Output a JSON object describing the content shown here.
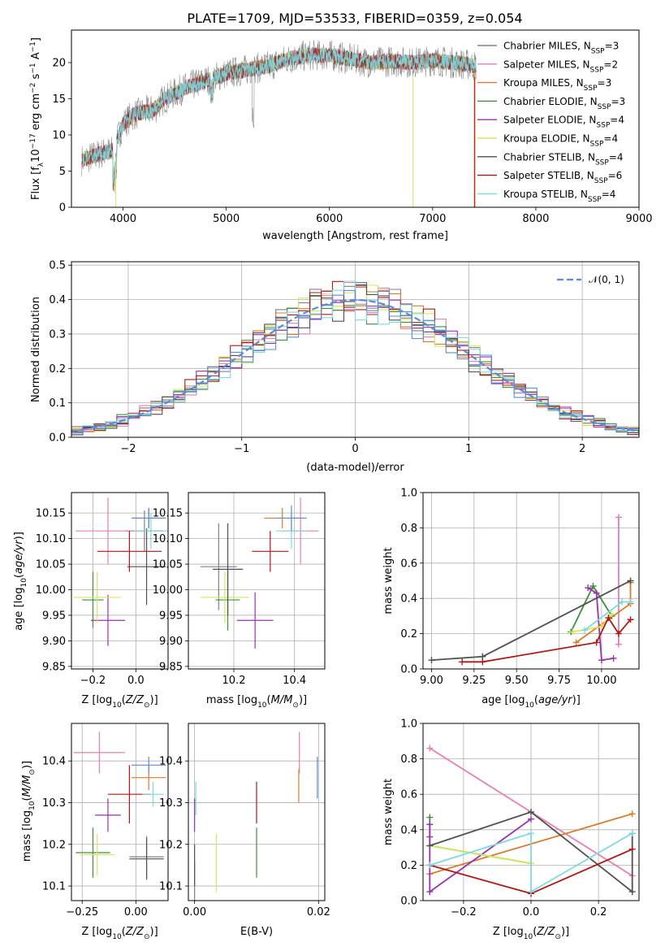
{
  "colors": {
    "Chabrier MILES": "#808080",
    "Salpeter MILES": "#e57fb2",
    "Kroupa MILES": "#d97c2b",
    "Chabrier ELODIE": "#3f8f3f",
    "Salpeter ELODIE": "#9b30b0",
    "Kroupa ELODIE": "#d6e85a",
    "Chabrier STELIB": "#505050",
    "Salpeter STELIB": "#b01818",
    "Kroupa STELIB": "#7fd8df",
    "normal": "#5b8bd9"
  },
  "chart_data": [
    {
      "type": "line",
      "title": "PLATE=1709, MJD=53533, FIBERID=0359, z=0.054",
      "xlabel": "wavelength [Angstrom, rest frame]",
      "ylabel": "Flux [fλ10⁻¹⁷ erg cm⁻² s⁻¹ A⁻¹]",
      "xlim": [
        3500,
        9000
      ],
      "ylim": [
        0,
        24.5
      ],
      "xticks": [
        4000,
        5000,
        6000,
        7000,
        8000,
        9000
      ],
      "yticks": [
        0,
        5,
        10,
        15,
        20
      ],
      "legend_position": "upper right",
      "legend": [
        "Chabrier MILES, NSSP=3",
        "Salpeter MILES, NSSP=2",
        "Kroupa MILES, NSSP=3",
        "Chabrier ELODIE, NSSP=3",
        "Salpeter ELODIE, NSSP=4",
        "Kroupa ELODIE, NSSP=4",
        "Chabrier STELIB, NSSP=4",
        "Salpeter STELIB, NSSP=6",
        "Kroupa STELIB, NSSP=4"
      ],
      "continuum": {
        "wavelength": [
          3600,
          3700,
          3800,
          3900,
          4000,
          4100,
          4200,
          4300,
          4400,
          4600,
          4800,
          5000,
          5200,
          5400,
          5600,
          5800,
          6000,
          6200,
          6400,
          6600,
          6800,
          7000,
          7200,
          7400
        ],
        "flux": [
          6.5,
          7.0,
          7.5,
          7.8,
          11.5,
          12.8,
          13.2,
          13.5,
          15.0,
          16.5,
          17.5,
          18.5,
          19.0,
          19.5,
          20.5,
          21.0,
          21.0,
          20.5,
          20.0,
          20.2,
          20.0,
          20.3,
          20.0,
          19.6
        ]
      }
    },
    {
      "type": "step",
      "xlabel": "(data-model)/error",
      "ylabel": "Normed distribution",
      "xlim": [
        -2.5,
        2.5
      ],
      "ylim": [
        0,
        0.51
      ],
      "xticks": [
        -2,
        -1,
        0,
        1,
        2
      ],
      "yticks": [
        0.0,
        0.1,
        0.2,
        0.3,
        0.4,
        0.5
      ],
      "grid": true,
      "bin_width": 0.1,
      "legend": [
        "𝒩(0, 1)"
      ],
      "legend_position": "upper right",
      "normal_curve": {
        "mean": 0,
        "sigma": 1
      }
    },
    {
      "type": "errorbar",
      "xlabel": "Z [log10(Z/Z⊙)]",
      "ylabel": "age [log10(age/yr)]",
      "xlim": [
        -0.3,
        0.15
      ],
      "ylim": [
        9.845,
        10.19
      ],
      "xticks": [
        -0.2,
        0.0
      ],
      "xticklabels": [
        "−0.2",
        "0.0"
      ],
      "yticks": [
        9.85,
        9.9,
        9.95,
        10.0,
        10.05,
        10.1,
        10.15
      ],
      "points": [
        {
          "name": "Chabrier MILES",
          "x": 0.04,
          "y": 10.115,
          "xerr": 0.09,
          "yerr": 0.04
        },
        {
          "name": "Salpeter MILES",
          "x": -0.13,
          "y": 10.115,
          "xerr": 0.15,
          "yerr": 0.065
        },
        {
          "name": "Kroupa MILES",
          "x": 0.06,
          "y": 10.14,
          "xerr": 0.08,
          "yerr": 0.02
        },
        {
          "name": "Chabrier ELODIE",
          "x": -0.2,
          "y": 9.98,
          "xerr": 0.05,
          "yerr": 0.055
        },
        {
          "name": "Salpeter ELODIE",
          "x": -0.13,
          "y": 9.94,
          "xerr": 0.08,
          "yerr": 0.05
        },
        {
          "name": "Kroupa ELODIE",
          "x": -0.18,
          "y": 9.985,
          "xerr": 0.11,
          "yerr": 0.05
        },
        {
          "name": "Chabrier STELIB",
          "x": 0.05,
          "y": 10.045,
          "xerr": 0.09,
          "yerr": 0.075
        },
        {
          "name": "Salpeter STELIB",
          "x": -0.03,
          "y": 10.075,
          "xerr": 0.15,
          "yerr": 0.04
        },
        {
          "name": "Kroupa STELIB",
          "x": 0.07,
          "y": 10.115,
          "xerr": 0.08,
          "yerr": 0.035
        },
        {
          "name": "normal",
          "x": 0.06,
          "y": 10.14,
          "xerr": 0.08,
          "yerr": 0.02
        }
      ]
    },
    {
      "type": "errorbar",
      "xlabel": "mass [log10(M/M⊙)]",
      "xlim": [
        10.05,
        10.5
      ],
      "ylim": [
        9.845,
        10.19
      ],
      "xticks": [
        10.2,
        10.4
      ],
      "yticks": [
        9.85,
        9.9,
        9.95,
        10.0,
        10.05,
        10.1,
        10.15
      ],
      "points": [
        {
          "name": "Chabrier MILES",
          "x": 10.15,
          "y": 10.045,
          "xerr": 0.06,
          "yerr": 0.085
        },
        {
          "name": "Salpeter MILES",
          "x": 10.42,
          "y": 10.115,
          "xerr": 0.06,
          "yerr": 0.065
        },
        {
          "name": "Kroupa MILES",
          "x": 10.36,
          "y": 10.14,
          "xerr": 0.06,
          "yerr": 0.02
        },
        {
          "name": "Chabrier ELODIE",
          "x": 10.18,
          "y": 9.98,
          "xerr": 0.04,
          "yerr": 0.06
        },
        {
          "name": "Salpeter ELODIE",
          "x": 10.27,
          "y": 9.94,
          "xerr": 0.06,
          "yerr": 0.055
        },
        {
          "name": "Kroupa ELODIE",
          "x": 10.17,
          "y": 9.985,
          "xerr": 0.08,
          "yerr": 0.05
        },
        {
          "name": "Chabrier STELIB",
          "x": 10.18,
          "y": 10.04,
          "xerr": 0.05,
          "yerr": 0.09
        },
        {
          "name": "Salpeter STELIB",
          "x": 10.32,
          "y": 10.075,
          "xerr": 0.06,
          "yerr": 0.04
        },
        {
          "name": "Kroupa STELIB",
          "x": 10.39,
          "y": 10.115,
          "xerr": 0.05,
          "yerr": 0.035
        },
        {
          "name": "normal",
          "x": 10.39,
          "y": 10.14,
          "xerr": 0.05,
          "yerr": 0.025
        }
      ]
    },
    {
      "type": "line",
      "xlabel": "age [log10(age/yr)]",
      "ylabel": "mass weight",
      "xlim": [
        8.95,
        10.22
      ],
      "ylim": [
        0,
        1
      ],
      "xticks": [
        9.0,
        9.25,
        9.5,
        9.75,
        10.0
      ],
      "xticklabels": [
        "9.00",
        "9.25",
        "9.50",
        "9.75",
        "10.00"
      ],
      "yticks": [
        0.0,
        0.2,
        0.4,
        0.6,
        0.8,
        1.0
      ],
      "grid": true,
      "series": [
        {
          "name": "Salpeter MILES",
          "x": [
            10.1,
            10.1
          ],
          "y": [
            0.86,
            0.14
          ]
        },
        {
          "name": "Kroupa MILES",
          "x": [
            9.85,
            10.17,
            10.17
          ],
          "y": [
            0.15,
            0.37,
            0.49
          ]
        },
        {
          "name": "Chabrier ELODIE",
          "x": [
            9.82,
            9.95,
            10.06
          ],
          "y": [
            0.21,
            0.47,
            0.3
          ]
        },
        {
          "name": "Salpeter ELODIE",
          "x": [
            9.92,
            9.97,
            10.0,
            10.07
          ],
          "y": [
            0.46,
            0.43,
            0.05,
            0.06
          ]
        },
        {
          "name": "Kroupa ELODIE",
          "x": [
            9.83,
            10.0,
            10.06
          ],
          "y": [
            0.21,
            0.24,
            0.31
          ]
        },
        {
          "name": "Chabrier STELIB",
          "x": [
            9.0,
            9.3,
            10.17,
            9.3
          ],
          "y": [
            0.05,
            0.07,
            0.5,
            0.07
          ]
        },
        {
          "name": "Salpeter STELIB",
          "x": [
            9.18,
            9.3,
            9.97,
            10.04,
            10.1,
            10.17
          ],
          "y": [
            0.04,
            0.04,
            0.15,
            0.29,
            0.2,
            0.28
          ]
        },
        {
          "name": "Kroupa STELIB",
          "x": [
            9.9,
            10.12,
            10.17
          ],
          "y": [
            0.22,
            0.38,
            0.38
          ]
        }
      ]
    },
    {
      "type": "errorbar",
      "xlabel": "Z [log10(Z/Z⊙)]",
      "ylabel": "mass [log10(M/M⊙)]",
      "xlim": [
        -0.3,
        0.15
      ],
      "ylim": [
        10.065,
        10.49
      ],
      "xticks": [
        -0.25,
        0.0
      ],
      "xticklabels": [
        "−0.25",
        "0.00"
      ],
      "yticks": [
        10.1,
        10.2,
        10.3,
        10.4
      ],
      "points": [
        {
          "name": "Chabrier MILES",
          "x": 0.05,
          "y": 10.17,
          "xerr": 0.08,
          "yerr": 0.05
        },
        {
          "name": "Salpeter MILES",
          "x": -0.17,
          "y": 10.42,
          "xerr": 0.12,
          "yerr": 0.05
        },
        {
          "name": "Kroupa MILES",
          "x": 0.06,
          "y": 10.36,
          "xerr": 0.08,
          "yerr": 0.03
        },
        {
          "name": "Chabrier ELODIE",
          "x": -0.2,
          "y": 10.18,
          "xerr": 0.08,
          "yerr": 0.06
        },
        {
          "name": "Salpeter ELODIE",
          "x": -0.13,
          "y": 10.27,
          "xerr": 0.06,
          "yerr": 0.04
        },
        {
          "name": "Kroupa ELODIE",
          "x": -0.18,
          "y": 10.175,
          "xerr": 0.08,
          "yerr": 0.05
        },
        {
          "name": "Chabrier STELIB",
          "x": 0.05,
          "y": 10.165,
          "xerr": 0.08,
          "yerr": 0.05
        },
        {
          "name": "Salpeter STELIB",
          "x": -0.03,
          "y": 10.32,
          "xerr": 0.1,
          "yerr": 0.07
        },
        {
          "name": "Kroupa STELIB",
          "x": 0.08,
          "y": 10.32,
          "xerr": 0.05,
          "yerr": 0.03
        },
        {
          "name": "normal",
          "x": 0.06,
          "y": 10.39,
          "xerr": 0.08,
          "yerr": 0.02
        }
      ]
    },
    {
      "type": "errorbar",
      "xlabel": "E(B-V)",
      "xlim": [
        -0.001,
        0.021
      ],
      "ylim": [
        10.065,
        10.49
      ],
      "xticks": [
        0.0,
        0.02
      ],
      "xticklabels": [
        "0.00",
        "0.02"
      ],
      "yticks": [
        10.1,
        10.2,
        10.3,
        10.4
      ],
      "points": [
        {
          "name": "Chabrier MILES",
          "x": 0.0,
          "y": 10.11,
          "xerr": 0,
          "yerr": 0.05
        },
        {
          "name": "Salpeter MILES",
          "x": 0.0169,
          "y": 10.42,
          "xerr": 0,
          "yerr": 0.05
        },
        {
          "name": "Kroupa MILES",
          "x": 0.0168,
          "y": 10.34,
          "xerr": 0,
          "yerr": 0.04
        },
        {
          "name": "Chabrier ELODIE",
          "x": 0.01,
          "y": 10.18,
          "xerr": 0,
          "yerr": 0.06
        },
        {
          "name": "Salpeter ELODIE",
          "x": 0.0,
          "y": 10.27,
          "xerr": 0,
          "yerr": 0.04
        },
        {
          "name": "Kroupa ELODIE",
          "x": 0.0035,
          "y": 10.155,
          "xerr": 0,
          "yerr": 0.07
        },
        {
          "name": "Chabrier STELIB",
          "x": 0.0,
          "y": 10.15,
          "xerr": 0,
          "yerr": 0.05
        },
        {
          "name": "Salpeter STELIB",
          "x": 0.01,
          "y": 10.3,
          "xerr": 0,
          "yerr": 0.05
        },
        {
          "name": "Kroupa STELIB",
          "x": 0.0002,
          "y": 10.31,
          "xerr": 0,
          "yerr": 0.04
        },
        {
          "name": "normal",
          "x": 0.0198,
          "y": 10.36,
          "xerr": 0,
          "yerr": 0.05
        }
      ]
    },
    {
      "type": "line",
      "xlabel": "Z [log10(Z/Z⊙)]",
      "ylabel": "mass weight",
      "xlim": [
        -0.32,
        0.32
      ],
      "ylim": [
        0,
        1
      ],
      "xticks": [
        -0.2,
        0.0,
        0.2
      ],
      "xticklabels": [
        "−0.2",
        "0.0",
        "0.2"
      ],
      "yticks": [
        0.0,
        0.2,
        0.4,
        0.6,
        0.8,
        1.0
      ],
      "grid": true,
      "series": [
        {
          "name": "Salpeter MILES",
          "x": [
            -0.3,
            0.3
          ],
          "y": [
            0.86,
            0.14
          ]
        },
        {
          "name": "Kroupa MILES",
          "x": [
            -0.3,
            0.3
          ],
          "y": [
            0.15,
            0.49
          ]
        },
        {
          "name": "Chabrier ELODIE",
          "x": [
            -0.3,
            -0.3,
            0.0
          ],
          "y": [
            0.47,
            0.31,
            0.21
          ]
        },
        {
          "name": "Salpeter ELODIE",
          "x": [
            -0.3,
            -0.3,
            -0.3,
            0.0
          ],
          "y": [
            0.43,
            0.36,
            0.05,
            0.46
          ]
        },
        {
          "name": "Kroupa ELODIE",
          "x": [
            -0.3,
            0.0
          ],
          "y": [
            0.31,
            0.21
          ]
        },
        {
          "name": "Chabrier STELIB",
          "x": [
            -0.3,
            0.0,
            0.3,
            0.3
          ],
          "y": [
            0.31,
            0.5,
            0.05,
            0.38
          ]
        },
        {
          "name": "Salpeter STELIB",
          "x": [
            -0.3,
            0.0,
            0.3
          ],
          "y": [
            0.2,
            0.04,
            0.29
          ]
        },
        {
          "name": "Kroupa STELIB",
          "x": [
            -0.3,
            0.0,
            0.0,
            0.3
          ],
          "y": [
            0.2,
            0.38,
            0.05,
            0.38
          ]
        }
      ]
    }
  ]
}
